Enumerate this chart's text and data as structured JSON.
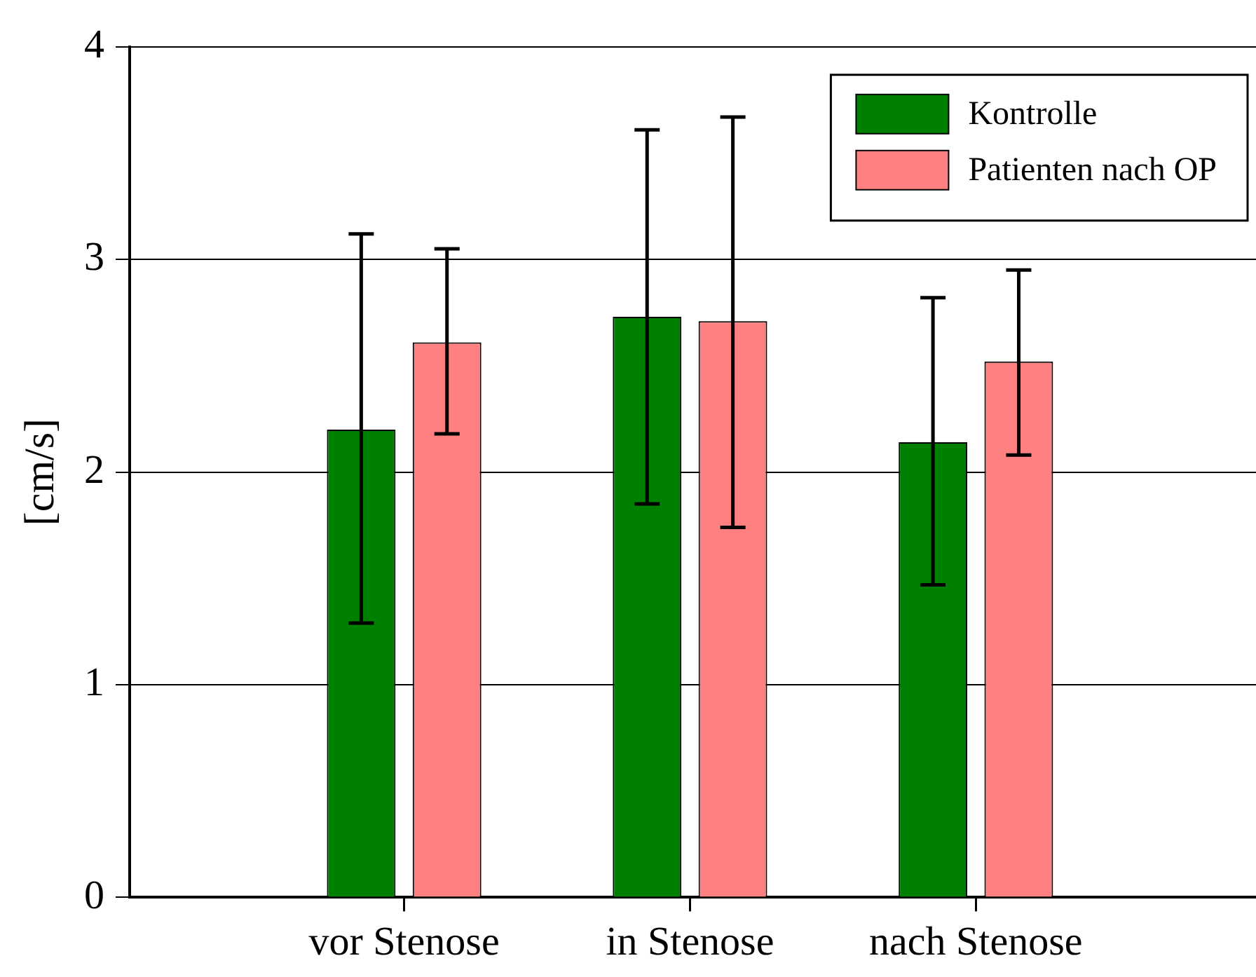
{
  "chart_data": {
    "type": "bar",
    "ylabel": "[cm/s]",
    "categories": [
      "vor Stenose",
      "in Stenose",
      "nach Stenose"
    ],
    "series": [
      {
        "name": "Kontrolle",
        "color": "#008000",
        "values": [
          2.2,
          2.73,
          2.14
        ],
        "errors": [
          [
            1.29,
            3.12
          ],
          [
            1.85,
            3.61
          ],
          [
            1.47,
            2.82
          ]
        ]
      },
      {
        "name": "Patienten nach OP",
        "color": "#ff8080",
        "values": [
          2.61,
          2.71,
          2.52
        ],
        "errors": [
          [
            2.18,
            3.05
          ],
          [
            1.74,
            3.67
          ],
          [
            2.08,
            2.95
          ]
        ]
      }
    ],
    "ylim": [
      0,
      4
    ],
    "yticks": [
      0,
      1,
      2,
      3,
      4
    ],
    "grid": "y",
    "legend": "top right"
  }
}
